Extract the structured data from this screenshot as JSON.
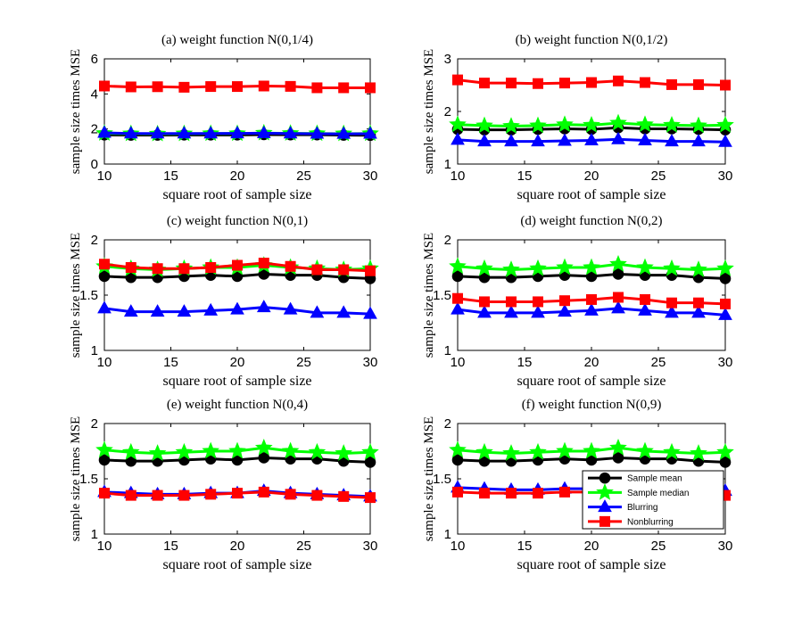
{
  "legend": {
    "entries": [
      "Sample mean",
      "Sample median",
      "Blurring",
      "Nonblurring"
    ],
    "placement": "inside-top-right of panel (f)"
  },
  "series_style": [
    {
      "name": "Sample mean",
      "color": "#000000",
      "marker": "circle"
    },
    {
      "name": "Sample median",
      "color": "#00ff00",
      "marker": "star"
    },
    {
      "name": "Blurring",
      "color": "#0000ff",
      "marker": "triangle"
    },
    {
      "name": "Nonblurring",
      "color": "#ff0000",
      "marker": "square"
    }
  ],
  "chart_data": [
    {
      "type": "line",
      "title": "(a) weight function N(0,1/4)",
      "xlabel": "square root of sample size",
      "ylabel": "sample size times MSE",
      "x": [
        10,
        12,
        14,
        16,
        18,
        20,
        22,
        24,
        26,
        28,
        30
      ],
      "xlim": [
        10,
        30
      ],
      "ylim": [
        0,
        6
      ],
      "xticks": [
        10,
        15,
        20,
        25,
        30
      ],
      "yticks": [
        0,
        2,
        4,
        6
      ],
      "grid": false,
      "series": [
        {
          "name": "Sample mean",
          "values": [
            1.66,
            1.65,
            1.65,
            1.66,
            1.66,
            1.66,
            1.68,
            1.67,
            1.67,
            1.65,
            1.64
          ]
        },
        {
          "name": "Sample median",
          "values": [
            1.75,
            1.73,
            1.72,
            1.73,
            1.74,
            1.74,
            1.77,
            1.75,
            1.74,
            1.73,
            1.74
          ]
        },
        {
          "name": "Blurring",
          "values": [
            1.78,
            1.74,
            1.74,
            1.74,
            1.74,
            1.75,
            1.76,
            1.74,
            1.73,
            1.72,
            1.73
          ]
        },
        {
          "name": "Nonblurring",
          "values": [
            4.45,
            4.4,
            4.41,
            4.38,
            4.42,
            4.42,
            4.45,
            4.43,
            4.35,
            4.35,
            4.35
          ]
        }
      ]
    },
    {
      "type": "line",
      "title": "(b) weight function N(0,1/2)",
      "xlabel": "square root of sample size",
      "ylabel": "sample size times MSE",
      "x": [
        10,
        12,
        14,
        16,
        18,
        20,
        22,
        24,
        26,
        28,
        30
      ],
      "xlim": [
        10,
        30
      ],
      "ylim": [
        1,
        3
      ],
      "xticks": [
        10,
        15,
        20,
        25,
        30
      ],
      "yticks": [
        1,
        2,
        3
      ],
      "grid": false,
      "series": [
        {
          "name": "Sample mean",
          "values": [
            1.66,
            1.65,
            1.65,
            1.66,
            1.67,
            1.66,
            1.69,
            1.67,
            1.67,
            1.66,
            1.65
          ]
        },
        {
          "name": "Sample median",
          "values": [
            1.75,
            1.73,
            1.72,
            1.73,
            1.75,
            1.74,
            1.78,
            1.75,
            1.74,
            1.73,
            1.74
          ]
        },
        {
          "name": "Blurring",
          "values": [
            1.46,
            1.43,
            1.43,
            1.43,
            1.44,
            1.45,
            1.47,
            1.45,
            1.43,
            1.43,
            1.42
          ]
        },
        {
          "name": "Nonblurring",
          "values": [
            2.6,
            2.54,
            2.54,
            2.53,
            2.54,
            2.55,
            2.58,
            2.55,
            2.51,
            2.51,
            2.5
          ]
        }
      ]
    },
    {
      "type": "line",
      "title": "(c) weight function N(0,1)",
      "xlabel": "square root of sample size",
      "ylabel": "sample size times MSE",
      "x": [
        10,
        12,
        14,
        16,
        18,
        20,
        22,
        24,
        26,
        28,
        30
      ],
      "xlim": [
        10,
        30
      ],
      "ylim": [
        1,
        2
      ],
      "xticks": [
        10,
        15,
        20,
        25,
        30
      ],
      "yticks": [
        1,
        1.5,
        2
      ],
      "grid": false,
      "series": [
        {
          "name": "Sample mean",
          "values": [
            1.67,
            1.66,
            1.66,
            1.67,
            1.68,
            1.67,
            1.69,
            1.68,
            1.68,
            1.66,
            1.65
          ]
        },
        {
          "name": "Sample median",
          "values": [
            1.76,
            1.74,
            1.73,
            1.74,
            1.75,
            1.75,
            1.77,
            1.75,
            1.74,
            1.73,
            1.74
          ]
        },
        {
          "name": "Blurring",
          "values": [
            1.38,
            1.35,
            1.35,
            1.35,
            1.36,
            1.37,
            1.39,
            1.37,
            1.34,
            1.34,
            1.33
          ]
        },
        {
          "name": "Nonblurring",
          "values": [
            1.78,
            1.75,
            1.74,
            1.74,
            1.75,
            1.77,
            1.79,
            1.76,
            1.73,
            1.73,
            1.72
          ]
        }
      ]
    },
    {
      "type": "line",
      "title": "(d) weight function N(0,2)",
      "xlabel": "square root of sample size",
      "ylabel": "sample size times MSE",
      "x": [
        10,
        12,
        14,
        16,
        18,
        20,
        22,
        24,
        26,
        28,
        30
      ],
      "xlim": [
        10,
        30
      ],
      "ylim": [
        1,
        2
      ],
      "xticks": [
        10,
        15,
        20,
        25,
        30
      ],
      "yticks": [
        1,
        1.5,
        2
      ],
      "grid": false,
      "series": [
        {
          "name": "Sample mean",
          "values": [
            1.67,
            1.66,
            1.66,
            1.67,
            1.68,
            1.67,
            1.69,
            1.68,
            1.68,
            1.66,
            1.65
          ]
        },
        {
          "name": "Sample median",
          "values": [
            1.76,
            1.74,
            1.73,
            1.74,
            1.75,
            1.75,
            1.78,
            1.75,
            1.74,
            1.73,
            1.74
          ]
        },
        {
          "name": "Blurring",
          "values": [
            1.37,
            1.34,
            1.34,
            1.34,
            1.35,
            1.36,
            1.38,
            1.36,
            1.34,
            1.34,
            1.32
          ]
        },
        {
          "name": "Nonblurring",
          "values": [
            1.47,
            1.44,
            1.44,
            1.44,
            1.45,
            1.46,
            1.48,
            1.46,
            1.43,
            1.43,
            1.42
          ]
        }
      ]
    },
    {
      "type": "line",
      "title": "(e) weight function N(0,4)",
      "xlabel": "square root of sample size",
      "ylabel": "sample size times MSE",
      "x": [
        10,
        12,
        14,
        16,
        18,
        20,
        22,
        24,
        26,
        28,
        30
      ],
      "xlim": [
        10,
        30
      ],
      "ylim": [
        1,
        2
      ],
      "xticks": [
        10,
        15,
        20,
        25,
        30
      ],
      "yticks": [
        1,
        1.5,
        2
      ],
      "grid": false,
      "series": [
        {
          "name": "Sample mean",
          "values": [
            1.67,
            1.66,
            1.66,
            1.67,
            1.68,
            1.67,
            1.69,
            1.68,
            1.68,
            1.66,
            1.65
          ]
        },
        {
          "name": "Sample median",
          "values": [
            1.76,
            1.74,
            1.73,
            1.74,
            1.75,
            1.75,
            1.78,
            1.75,
            1.74,
            1.73,
            1.74
          ]
        },
        {
          "name": "Blurring",
          "values": [
            1.38,
            1.37,
            1.36,
            1.36,
            1.37,
            1.37,
            1.39,
            1.37,
            1.36,
            1.35,
            1.34
          ]
        },
        {
          "name": "Nonblurring",
          "values": [
            1.37,
            1.35,
            1.35,
            1.35,
            1.36,
            1.37,
            1.38,
            1.36,
            1.35,
            1.34,
            1.33
          ]
        }
      ]
    },
    {
      "type": "line",
      "title": "(f) weight function N(0,9)",
      "xlabel": "square root of sample size",
      "ylabel": "sample size times MSE",
      "x": [
        10,
        12,
        14,
        16,
        18,
        20,
        22,
        24,
        26,
        28,
        30
      ],
      "xlim": [
        10,
        30
      ],
      "ylim": [
        1,
        2
      ],
      "xticks": [
        10,
        15,
        20,
        25,
        30
      ],
      "yticks": [
        1,
        1.5,
        2
      ],
      "grid": false,
      "legend": true,
      "series": [
        {
          "name": "Sample mean",
          "values": [
            1.67,
            1.66,
            1.66,
            1.67,
            1.68,
            1.67,
            1.69,
            1.68,
            1.68,
            1.66,
            1.65
          ]
        },
        {
          "name": "Sample median",
          "values": [
            1.76,
            1.74,
            1.73,
            1.74,
            1.75,
            1.75,
            1.78,
            1.75,
            1.74,
            1.73,
            1.74
          ]
        },
        {
          "name": "Blurring",
          "values": [
            1.42,
            1.41,
            1.4,
            1.4,
            1.41,
            1.41,
            1.42,
            1.41,
            1.4,
            1.39,
            1.39
          ]
        },
        {
          "name": "Nonblurring",
          "values": [
            1.38,
            1.37,
            1.37,
            1.37,
            1.38,
            1.38,
            1.4,
            1.38,
            1.37,
            1.36,
            1.35
          ]
        }
      ]
    }
  ]
}
